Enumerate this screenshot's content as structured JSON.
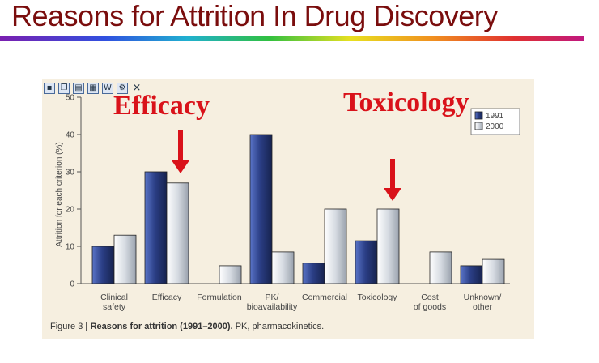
{
  "slide_title": "Reasons for Attrition In Drug Discovery",
  "toolbar": {
    "icons": [
      "save-icon",
      "copy-icon",
      "print-icon",
      "preview-icon",
      "word-icon",
      "settings-icon",
      "close-icon"
    ],
    "close_glyph": "×"
  },
  "annotations": {
    "efficacy": "Efficacy",
    "toxicology": "Toxicology"
  },
  "caption": {
    "figure_num": "Figure 3",
    "separator": "|",
    "bold_text": "Reasons for attrition (1991–2000).",
    "rest_text": "PK, pharmacokinetics."
  },
  "colors": {
    "annotation_red": "#d9121a",
    "series_1991": "#27397a",
    "series_2000": "#cfd5dc",
    "panel_bg": "#f6efe0",
    "title": "#7a0d0d"
  },
  "chart_data": {
    "type": "bar",
    "ylabel": "Attrition for each criterion (%)",
    "ylim": [
      0,
      50
    ],
    "yticks": [
      0,
      10,
      20,
      30,
      40,
      50
    ],
    "categories": [
      [
        "Clinical",
        "safety"
      ],
      [
        "Efficacy"
      ],
      [
        "Formulation"
      ],
      [
        "PK/",
        "bioavailability"
      ],
      [
        "Commercial"
      ],
      [
        "Toxicology"
      ],
      [
        "Cost",
        "of goods"
      ],
      [
        "Unknown/",
        "other"
      ]
    ],
    "series": [
      {
        "name": "1991",
        "values": [
          10,
          30,
          0,
          40,
          5.5,
          11.5,
          0,
          4.8
        ]
      },
      {
        "name": "2000",
        "values": [
          13,
          27,
          4.8,
          8.5,
          20,
          20,
          8.5,
          6.5
        ]
      }
    ],
    "legend": "top-right",
    "grid": false
  }
}
